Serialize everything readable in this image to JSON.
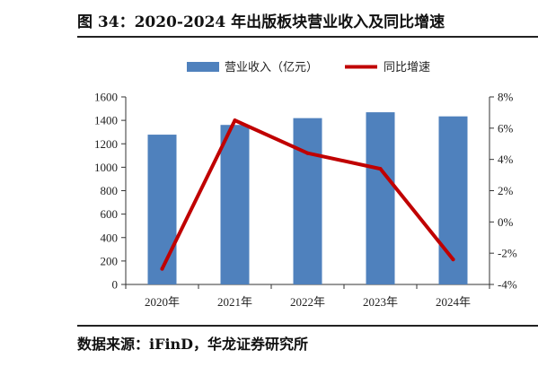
{
  "title": "图 34：2020-2024 年出版板块营业收入及同比增速",
  "source": "数据来源：iFinD，华龙证券研究所",
  "chart_data": {
    "type": "bar",
    "categories": [
      "2020年",
      "2021年",
      "2022年",
      "2023年",
      "2024年"
    ],
    "series": [
      {
        "name": "营业收入（亿元）",
        "type": "bar",
        "axis": "left",
        "color": "#4f81bd",
        "values": [
          1278,
          1361,
          1419,
          1469,
          1434
        ]
      },
      {
        "name": "同比增速",
        "type": "line",
        "axis": "right",
        "color": "#c00000",
        "values": [
          -3.0,
          6.5,
          4.4,
          3.4,
          -2.4
        ]
      }
    ],
    "y_left": {
      "min": 0,
      "max": 1600,
      "ticks": [
        0,
        200,
        400,
        600,
        800,
        1000,
        1200,
        1400,
        1600
      ]
    },
    "y_right": {
      "min": -4,
      "max": 8,
      "ticks": [
        "-4%",
        "-2%",
        "0%",
        "2%",
        "4%",
        "6%",
        "8%"
      ]
    },
    "legend_position": "top",
    "grid": false
  }
}
